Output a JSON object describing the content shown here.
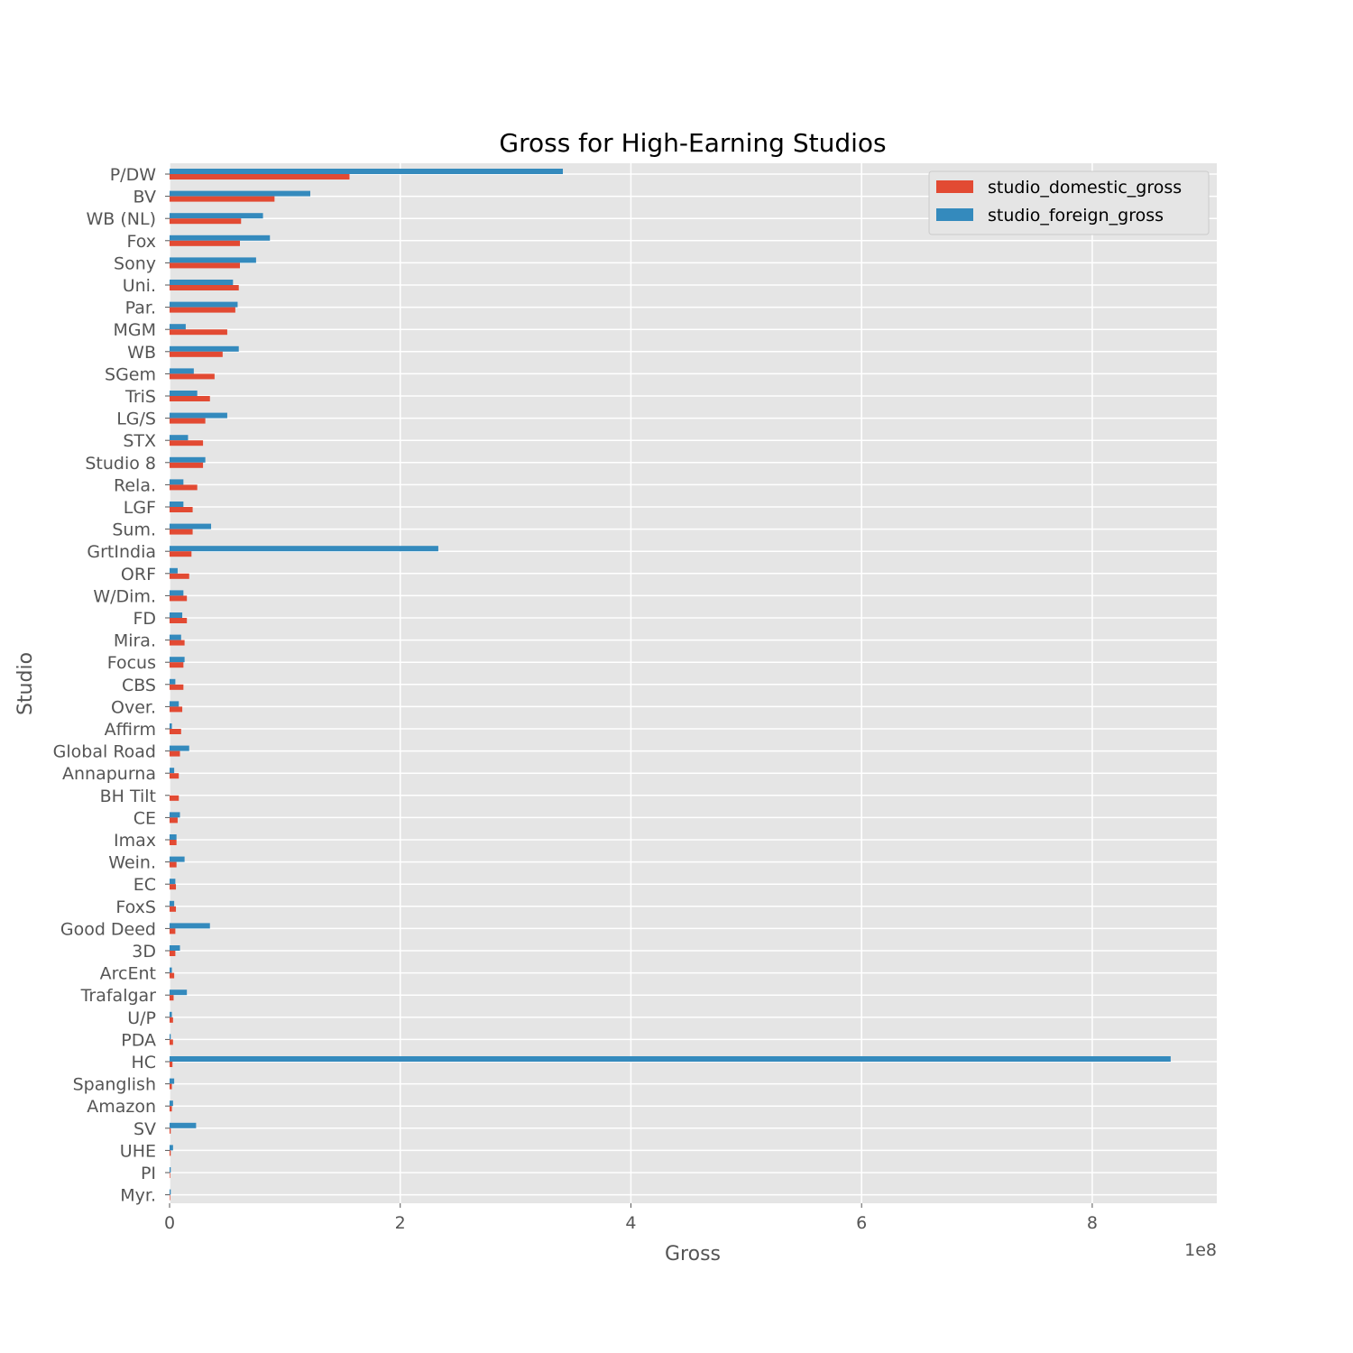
{
  "chart_data": {
    "type": "bar",
    "orientation": "horizontal",
    "title": "Gross for High-Earning Studios",
    "xlabel": "Gross",
    "ylabel": "Studio",
    "x_offset_text": "1e8",
    "xlim": [
      0,
      9.08
    ],
    "x_ticks": [
      0,
      2,
      4,
      6,
      8
    ],
    "grid": true,
    "legend_position": "top-right",
    "categories": [
      "P/DW",
      "BV",
      "WB (NL)",
      "Fox",
      "Sony",
      "Uni.",
      "Par.",
      "MGM",
      "WB",
      "SGem",
      "TriS",
      "LG/S",
      "STX",
      "Studio 8",
      "Rela.",
      "LGF",
      "Sum.",
      "GrtIndia",
      "ORF",
      "W/Dim.",
      "FD",
      "Mira.",
      "Focus",
      "CBS",
      "Over.",
      "Affirm",
      "Global Road",
      "Annapurna",
      "BH Tilt",
      "CE",
      "Imax",
      "Wein.",
      "EC",
      "FoxS",
      "Good Deed",
      "3D",
      "ArcEnt",
      "Trafalgar",
      "U/P",
      "PDA",
      "HC",
      "Spanglish",
      "Amazon",
      "SV",
      "UHE",
      "PI",
      "Myr."
    ],
    "series": [
      {
        "name": "studio_domestic_gross",
        "color": "#E24A33",
        "values": [
          1.56,
          0.91,
          0.62,
          0.61,
          0.61,
          0.6,
          0.57,
          0.5,
          0.46,
          0.39,
          0.35,
          0.31,
          0.29,
          0.29,
          0.24,
          0.2,
          0.2,
          0.19,
          0.17,
          0.15,
          0.15,
          0.13,
          0.12,
          0.12,
          0.11,
          0.1,
          0.09,
          0.08,
          0.08,
          0.07,
          0.06,
          0.06,
          0.055,
          0.055,
          0.05,
          0.05,
          0.04,
          0.035,
          0.03,
          0.03,
          0.025,
          0.02,
          0.02,
          0.01,
          0.01,
          0.005,
          0.005
        ]
      },
      {
        "name": "studio_foreign_gross",
        "color": "#348ABD",
        "values": [
          3.41,
          1.22,
          0.81,
          0.87,
          0.75,
          0.55,
          0.59,
          0.14,
          0.6,
          0.21,
          0.24,
          0.5,
          0.16,
          0.31,
          0.12,
          0.12,
          0.36,
          2.33,
          0.07,
          0.12,
          0.11,
          0.1,
          0.13,
          0.05,
          0.08,
          0.02,
          0.17,
          0.04,
          0.0,
          0.09,
          0.06,
          0.13,
          0.05,
          0.04,
          0.35,
          0.09,
          0.02,
          0.15,
          0.02,
          0.01,
          8.68,
          0.04,
          0.03,
          0.23,
          0.03,
          0.01,
          0.01
        ]
      }
    ]
  }
}
